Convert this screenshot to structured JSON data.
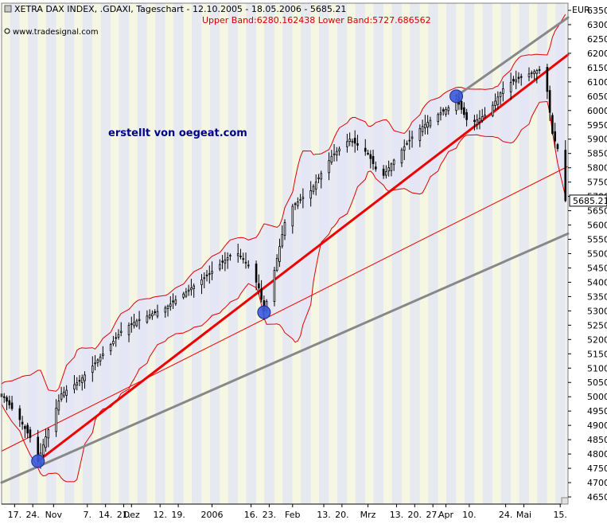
{
  "header": {
    "title": "XETRA DAX INDEX, .GDAXI, Tageschart - 12.10.2005 - 18.05.2006 - 5685.21",
    "bands": "Upper Band:6280.162438 Lower Band:5727.686562",
    "source": "www.tradesignal.com",
    "watermark": "erstellt von oegeat.com"
  },
  "chart_data": {
    "type": "candlestick",
    "currency": "EUR",
    "last_value": "5685.21",
    "ylim": [
      4625,
      6375
    ],
    "y_ticks": [
      4650,
      4700,
      4750,
      4800,
      4850,
      4900,
      4950,
      5000,
      5050,
      5100,
      5150,
      5200,
      5250,
      5300,
      5350,
      5400,
      5450,
      5500,
      5550,
      5600,
      5650,
      5700,
      5750,
      5800,
      5850,
      5900,
      5950,
      6000,
      6050,
      6100,
      6150,
      6200,
      6250,
      6300,
      6350
    ],
    "x_tick_labels": [
      "17.",
      "24.",
      "Nov",
      "7.",
      "14.",
      "21.",
      "Dez",
      "12.",
      "19.",
      "2006",
      "16.",
      "23.",
      "Feb",
      "13.",
      "20.",
      "Mrz",
      "13.",
      "20.",
      "27.",
      "Apr",
      "10.",
      "24.",
      "Mai",
      "15."
    ],
    "x_tick_days": [
      5,
      12,
      20,
      33,
      40,
      47,
      50,
      61,
      68,
      81,
      96,
      103,
      112,
      124,
      131,
      141,
      152,
      159,
      166,
      171,
      180,
      194,
      201,
      215
    ],
    "date_range": [
      "2005-10-12",
      "2006-05-18"
    ],
    "day_span": 218,
    "series": [
      {
        "name": "",
        "style": "ohlc",
        "closes": [
          {
            "day": 0,
            "value": 5010
          },
          {
            "day": 7,
            "value": 4920
          },
          {
            "day": 12,
            "value": 4842
          },
          {
            "day": 14,
            "value": 4775
          },
          {
            "day": 17,
            "value": 4860
          },
          {
            "day": 23,
            "value": 5010
          },
          {
            "day": 30,
            "value": 5055
          },
          {
            "day": 40,
            "value": 5160
          },
          {
            "day": 47,
            "value": 5240
          },
          {
            "day": 53,
            "value": 5270
          },
          {
            "day": 63,
            "value": 5310
          },
          {
            "day": 73,
            "value": 5380
          },
          {
            "day": 80,
            "value": 5430
          },
          {
            "day": 90,
            "value": 5510
          },
          {
            "day": 95,
            "value": 5460
          },
          {
            "day": 99,
            "value": 5380
          },
          {
            "day": 101,
            "value": 5300
          },
          {
            "day": 104,
            "value": 5400
          },
          {
            "day": 110,
            "value": 5650
          },
          {
            "day": 119,
            "value": 5720
          },
          {
            "day": 127,
            "value": 5840
          },
          {
            "day": 134,
            "value": 5900
          },
          {
            "day": 141,
            "value": 5850
          },
          {
            "day": 146,
            "value": 5760
          },
          {
            "day": 152,
            "value": 5840
          },
          {
            "day": 160,
            "value": 5930
          },
          {
            "day": 167,
            "value": 5980
          },
          {
            "day": 172,
            "value": 6010
          },
          {
            "day": 175,
            "value": 6040
          },
          {
            "day": 180,
            "value": 5950
          },
          {
            "day": 187,
            "value": 5990
          },
          {
            "day": 194,
            "value": 6090
          },
          {
            "day": 201,
            "value": 6120
          },
          {
            "day": 206,
            "value": 6140
          },
          {
            "day": 209,
            "value": 6140
          },
          {
            "day": 212,
            "value": 5920
          },
          {
            "day": 215,
            "value": 5840
          },
          {
            "day": 217,
            "value": 5685.21
          }
        ]
      }
    ],
    "trendlines": [
      {
        "color": "#ee0000",
        "width": "thick",
        "from": {
          "day": 14,
          "value": 4775
        },
        "to": {
          "day": 218,
          "value": 6195
        }
      },
      {
        "color": "#ee0000",
        "width": "thin",
        "from": {
          "day": 0,
          "value": 4810
        },
        "to": {
          "day": 218,
          "value": 5805
        }
      },
      {
        "color": "#888888",
        "width": "thick",
        "from": {
          "day": 0,
          "value": 4700
        },
        "to": {
          "day": 218,
          "value": 5570
        }
      },
      {
        "color": "#888888",
        "width": "thick",
        "from": {
          "day": 175,
          "value": 6050
        },
        "to": {
          "day": 218,
          "value": 6325
        }
      }
    ],
    "markers": [
      {
        "day": 14,
        "value": 4775
      },
      {
        "day": 101,
        "value": 5295
      },
      {
        "day": 175,
        "value": 6050
      }
    ],
    "colors": {
      "band_line": "#e00000",
      "band_fill": "#e4e4f7",
      "stripe_light": "#f6f7e2",
      "stripe_dark": "#e6e9f0",
      "marker": "#3a5adc",
      "candle": "#000000"
    }
  }
}
